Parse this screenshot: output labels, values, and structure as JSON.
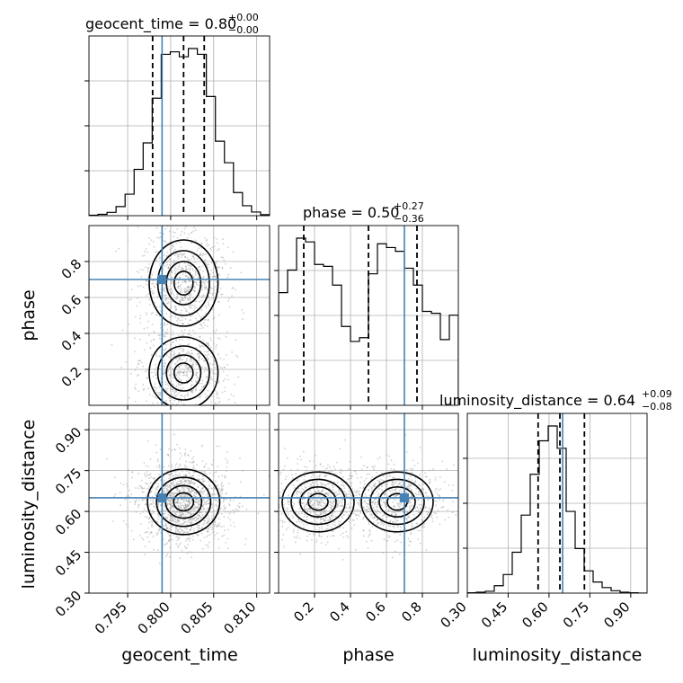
{
  "chart_data": {
    "type": "corner",
    "parameters": [
      "geocent_time",
      "phase",
      "luminosity_distance"
    ],
    "truth": {
      "geocent_time": 0.799,
      "phase": 0.7,
      "luminosity_distance": 0.65
    },
    "titles": [
      {
        "name": "geocent_time",
        "text": "geocent_time = 0.80",
        "plus": "+0.00",
        "minus": "−0.00"
      },
      {
        "name": "phase",
        "text": "phase = 0.50",
        "plus": "+0.27",
        "minus": "−0.36"
      },
      {
        "name": "luminosity_distance",
        "text": "luminosity_distance = 0.64",
        "plus": "+0.09",
        "minus": "−0.08"
      }
    ],
    "axes": {
      "geocent_time": {
        "range": [
          0.7905,
          0.8115
        ],
        "ticks": [
          "0.795",
          "0.800",
          "0.805",
          "0.810"
        ]
      },
      "phase": {
        "range": [
          0.0,
          1.0
        ],
        "ticks": [
          "0.2",
          "0.4",
          "0.6",
          "0.8"
        ]
      },
      "luminosity_distance": {
        "range": [
          0.3,
          0.96
        ],
        "ticks": [
          "0.30",
          "0.45",
          "0.60",
          "0.75",
          "0.90"
        ]
      }
    },
    "histograms": {
      "geocent_time": {
        "edges_start": 0.7905,
        "bin_width": 0.00105,
        "counts": [
          0.3,
          0.8,
          2.0,
          5.5,
          13,
          28,
          44,
          71,
          97.5,
          99,
          96,
          101,
          97.5,
          72,
          45,
          32,
          14,
          6,
          2.2,
          0.6
        ],
        "quantiles": [
          0.7979,
          0.8015,
          0.8039
        ]
      },
      "phase": {
        "edges_start": 0.0,
        "bin_width": 0.05,
        "counts": [
          60,
          72,
          89,
          87,
          75,
          74,
          64,
          42,
          34,
          36,
          70,
          86,
          84,
          82,
          73,
          64,
          50,
          49,
          35,
          48
        ],
        "quantiles": [
          0.14,
          0.5,
          0.77
        ]
      },
      "luminosity_distance": {
        "edges_start": 0.3,
        "bin_width": 0.033,
        "counts": [
          0.2,
          0.5,
          1,
          4,
          10,
          22,
          42,
          64,
          82,
          90,
          78,
          44,
          24,
          12,
          6,
          3,
          1.3,
          0.5,
          0.2,
          0.0
        ],
        "quantiles": [
          0.56,
          0.64,
          0.73
        ]
      }
    },
    "ylabels": [
      "phase",
      "luminosity_distance"
    ],
    "xlabels": [
      "geocent_time",
      "phase",
      "luminosity_distance"
    ]
  }
}
